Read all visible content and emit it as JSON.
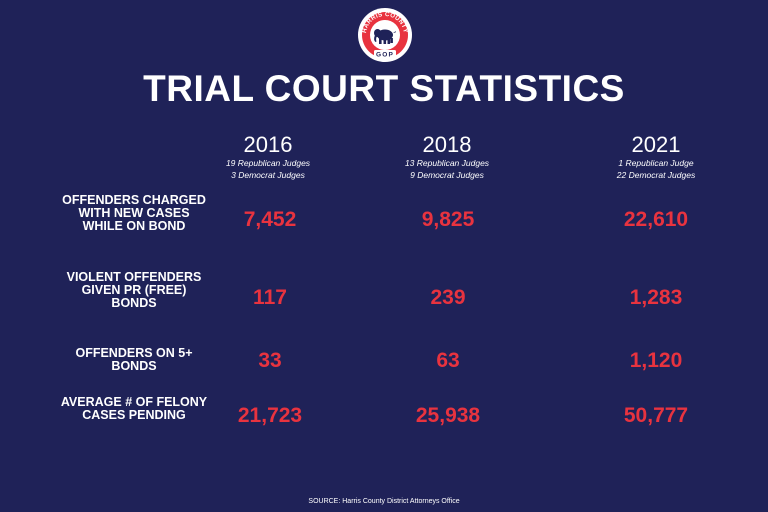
{
  "logo": {
    "top_text": "HARRIS COUNTY",
    "bottom_text": "GOP",
    "icon": "elephant-icon"
  },
  "title": "TRIAL COURT STATISTICS",
  "columns": [
    {
      "year": "2016",
      "line1": "19 Republican Judges",
      "line2": "3 Democrat Judges"
    },
    {
      "year": "2018",
      "line1": "13 Republican Judges",
      "line2": "9 Democrat Judges"
    },
    {
      "year": "2021",
      "line1": "1 Republican Judge",
      "line2": "22 Democrat Judges"
    }
  ],
  "rows": [
    {
      "label": "OFFENDERS CHARGED WITH NEW CASES WHILE ON BOND",
      "values": [
        "7,452",
        "9,825",
        "22,610"
      ]
    },
    {
      "label": "VIOLENT OFFENDERS GIVEN PR (FREE) BONDS",
      "values": [
        "117",
        "239",
        "1,283"
      ]
    },
    {
      "label": "OFFENDERS ON 5+ BONDS",
      "values": [
        "33",
        "63",
        "1,120"
      ]
    },
    {
      "label": "AVERAGE # OF FELONY CASES PENDING",
      "values": [
        "21,723",
        "25,938",
        "50,777"
      ]
    }
  ],
  "source": "SOURCE: Harris County District Attorneys Office",
  "colors": {
    "background": "#1f2258",
    "accent": "#e8333f",
    "text": "#ffffff"
  }
}
